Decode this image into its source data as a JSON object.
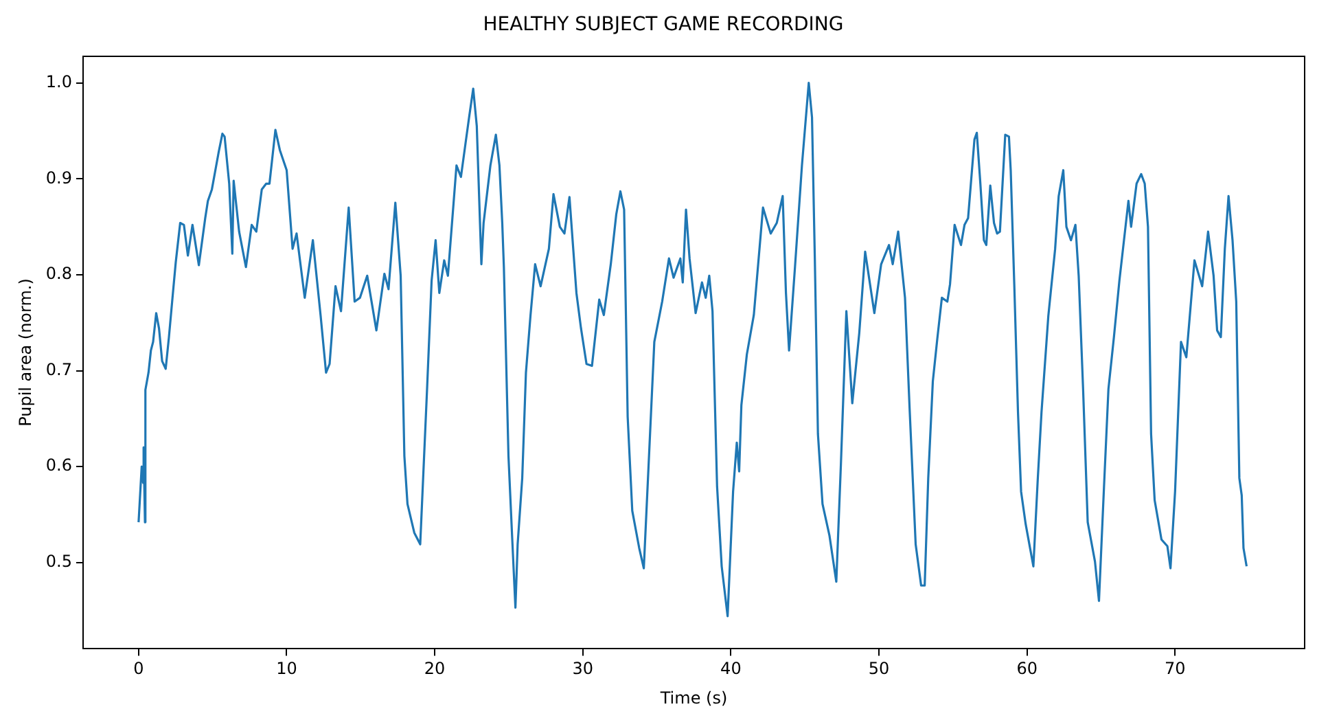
{
  "chart_data": {
    "type": "line",
    "title": "HEALTHY SUBJECT GAME RECORDING",
    "xlabel": "Time (s)",
    "ylabel": "Pupil area (norm.)",
    "xlim": [
      -3.75,
      78.75
    ],
    "ylim": [
      0.41,
      1.028
    ],
    "xticks": [
      0,
      10,
      20,
      30,
      40,
      50,
      60,
      70
    ],
    "yticks": [
      0.5,
      0.6,
      0.7,
      0.8,
      0.9,
      {
        "value": 1,
        "label": "1.0"
      }
    ],
    "grid": false,
    "legend": false,
    "series": [
      {
        "color": "#1f77b4",
        "x": [
          0,
          0.21,
          0.31,
          0.34,
          0.43,
          0.46,
          0.67,
          0.83,
          0.98,
          1.19,
          1.38,
          1.59,
          1.83,
          2.05,
          2.29,
          2.51,
          2.81,
          3.06,
          3.33,
          3.64,
          4.07,
          4.5,
          4.68,
          4.95,
          5.41,
          5.66,
          5.81,
          6.12,
          6.33,
          6.42,
          6.79,
          7.25,
          7.64,
          7.95,
          8.32,
          8.62,
          8.84,
          9.24,
          9.54,
          10.0,
          10.4,
          10.67,
          11.22,
          11.77,
          12.29,
          12.66,
          12.9,
          13.3,
          13.67,
          14.19,
          14.59,
          14.95,
          15.44,
          16.06,
          16.6,
          16.88,
          17.34,
          17.7,
          17.95,
          18.16,
          18.62,
          19.02,
          19.48,
          19.79,
          20.06,
          20.31,
          20.64,
          20.89,
          21.47,
          21.77,
          22.08,
          22.32,
          22.6,
          22.84,
          23.15,
          23.3,
          23.76,
          24.13,
          24.37,
          24.56,
          24.67,
          24.98,
          25.23,
          25.45,
          25.6,
          25.91,
          26.16,
          26.47,
          26.78,
          27.15,
          27.71,
          28.02,
          28.45,
          28.76,
          29.1,
          29.57,
          29.88,
          30.25,
          30.62,
          31.11,
          31.42,
          31.89,
          32.26,
          32.54,
          32.79,
          33.03,
          33.34,
          33.81,
          34.12,
          34.43,
          34.83,
          35.36,
          35.82,
          36.13,
          36.59,
          36.75,
          36.97,
          37.21,
          37.62,
          38.05,
          38.3,
          38.54,
          38.76,
          39.07,
          39.38,
          39.78,
          40.15,
          40.4,
          40.56,
          40.71,
          41.08,
          41.55,
          42.17,
          42.69,
          43.1,
          43.5,
          43.72,
          43.93,
          44.33,
          44.8,
          45.26,
          45.48,
          45.67,
          45.88,
          46.19,
          46.66,
          47.12,
          47.43,
          47.8,
          48.2,
          48.67,
          49.07,
          49.69,
          50.15,
          50.68,
          50.93,
          51.3,
          51.76,
          52.07,
          52.48,
          52.85,
          53.09,
          53.33,
          53.64,
          53.94,
          54.25,
          54.62,
          54.8,
          55.11,
          55.54,
          55.78,
          56.02,
          56.45,
          56.61,
          56.85,
          57.09,
          57.25,
          57.52,
          57.77,
          57.98,
          58.17,
          58.53,
          58.78,
          58.9,
          59.14,
          59.39,
          59.6,
          59.91,
          60.43,
          60.73,
          60.98,
          61.44,
          61.9,
          62.14,
          62.45,
          62.66,
          62.97,
          63.27,
          63.49,
          63.79,
          64.1,
          64.59,
          64.86,
          65.2,
          65.5,
          65.87,
          66.24,
          66.85,
          67.03,
          67.4,
          67.71,
          67.95,
          68.17,
          68.38,
          68.62,
          69.08,
          69.48,
          69.69,
          70.0,
          70.4,
          70.76,
          71.31,
          71.83,
          72.23,
          72.6,
          72.84,
          73.09,
          73.36,
          73.61,
          73.88,
          74.13,
          74.34,
          74.5,
          74.62,
          74.83
        ],
        "values": [
          0.542,
          0.6,
          0.583,
          0.62,
          0.542,
          0.68,
          0.698,
          0.721,
          0.73,
          0.76,
          0.744,
          0.71,
          0.702,
          0.735,
          0.776,
          0.813,
          0.854,
          0.852,
          0.82,
          0.852,
          0.81,
          0.859,
          0.877,
          0.889,
          0.928,
          0.947,
          0.944,
          0.895,
          0.822,
          0.898,
          0.845,
          0.808,
          0.852,
          0.845,
          0.889,
          0.895,
          0.895,
          0.951,
          0.93,
          0.909,
          0.827,
          0.843,
          0.776,
          0.836,
          0.758,
          0.698,
          0.707,
          0.788,
          0.762,
          0.87,
          0.772,
          0.776,
          0.799,
          0.742,
          0.801,
          0.785,
          0.875,
          0.799,
          0.611,
          0.561,
          0.531,
          0.519,
          0.68,
          0.794,
          0.836,
          0.781,
          0.815,
          0.799,
          0.914,
          0.902,
          0.937,
          0.964,
          0.994,
          0.955,
          0.811,
          0.854,
          0.914,
          0.946,
          0.914,
          0.854,
          0.808,
          0.611,
          0.526,
          0.453,
          0.519,
          0.588,
          0.698,
          0.758,
          0.811,
          0.788,
          0.827,
          0.884,
          0.85,
          0.843,
          0.881,
          0.781,
          0.744,
          0.707,
          0.705,
          0.774,
          0.758,
          0.811,
          0.863,
          0.887,
          0.868,
          0.652,
          0.554,
          0.515,
          0.494,
          0.597,
          0.73,
          0.772,
          0.817,
          0.797,
          0.817,
          0.792,
          0.868,
          0.817,
          0.76,
          0.792,
          0.776,
          0.799,
          0.762,
          0.579,
          0.496,
          0.444,
          0.574,
          0.625,
          0.595,
          0.664,
          0.717,
          0.758,
          0.87,
          0.843,
          0.854,
          0.882,
          0.781,
          0.721,
          0.808,
          0.914,
          1.0,
          0.964,
          0.817,
          0.634,
          0.561,
          0.528,
          0.48,
          0.602,
          0.762,
          0.666,
          0.739,
          0.824,
          0.76,
          0.811,
          0.831,
          0.811,
          0.845,
          0.776,
          0.661,
          0.519,
          0.476,
          0.476,
          0.588,
          0.689,
          0.733,
          0.776,
          0.772,
          0.79,
          0.852,
          0.831,
          0.852,
          0.859,
          0.941,
          0.948,
          0.895,
          0.836,
          0.831,
          0.893,
          0.854,
          0.843,
          0.845,
          0.946,
          0.944,
          0.909,
          0.79,
          0.657,
          0.574,
          0.54,
          0.496,
          0.588,
          0.657,
          0.757,
          0.827,
          0.882,
          0.909,
          0.85,
          0.836,
          0.852,
          0.799,
          0.68,
          0.542,
          0.501,
          0.46,
          0.579,
          0.681,
          0.735,
          0.794,
          0.877,
          0.85,
          0.895,
          0.905,
          0.895,
          0.85,
          0.634,
          0.565,
          0.524,
          0.517,
          0.494,
          0.574,
          0.73,
          0.714,
          0.815,
          0.788,
          0.845,
          0.799,
          0.742,
          0.735,
          0.827,
          0.882,
          0.836,
          0.772,
          0.588,
          0.57,
          0.515,
          0.496
        ]
      }
    ]
  }
}
